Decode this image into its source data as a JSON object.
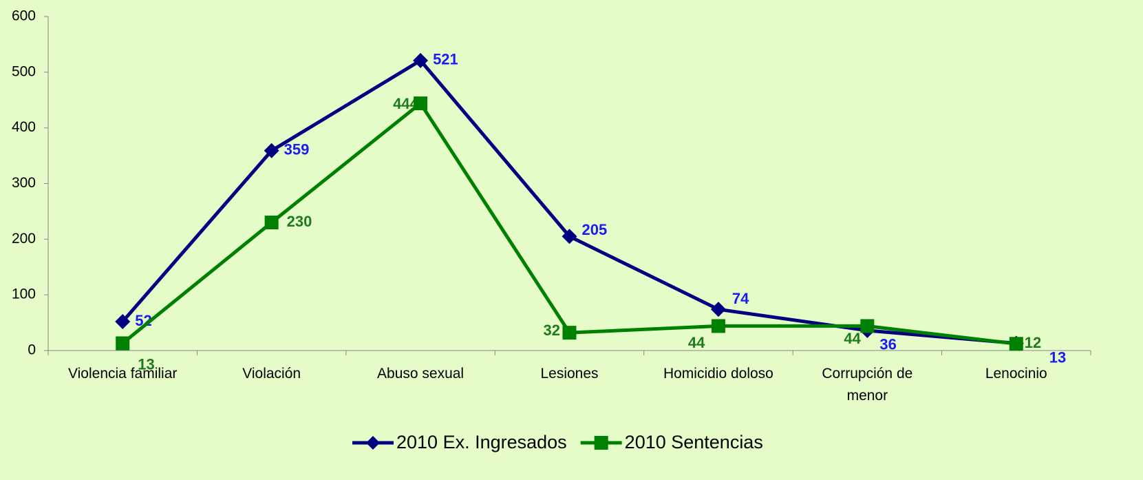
{
  "chart_data": {
    "type": "line",
    "categories": [
      "Violencia familiar",
      "Violación",
      "Abuso sexual",
      "Lesiones",
      "Homicidio doloso",
      "Corrupción de menor",
      "Lenocinio"
    ],
    "series": [
      {
        "name": "2010 Ex. Ingresados",
        "color": "#000080",
        "label_color": "#1c1cf0",
        "marker": "diamond",
        "values": [
          52,
          359,
          521,
          205,
          74,
          36,
          13
        ]
      },
      {
        "name": "2010 Sentencias",
        "color": "#008000",
        "label_color": "#1f7a1f",
        "marker": "square",
        "values": [
          13,
          230,
          444,
          32,
          44,
          44,
          12
        ]
      }
    ],
    "ylim": [
      0,
      600
    ],
    "yticks": [
      0,
      100,
      200,
      300,
      400,
      500,
      600
    ],
    "grid": false,
    "legend": "bottom"
  }
}
